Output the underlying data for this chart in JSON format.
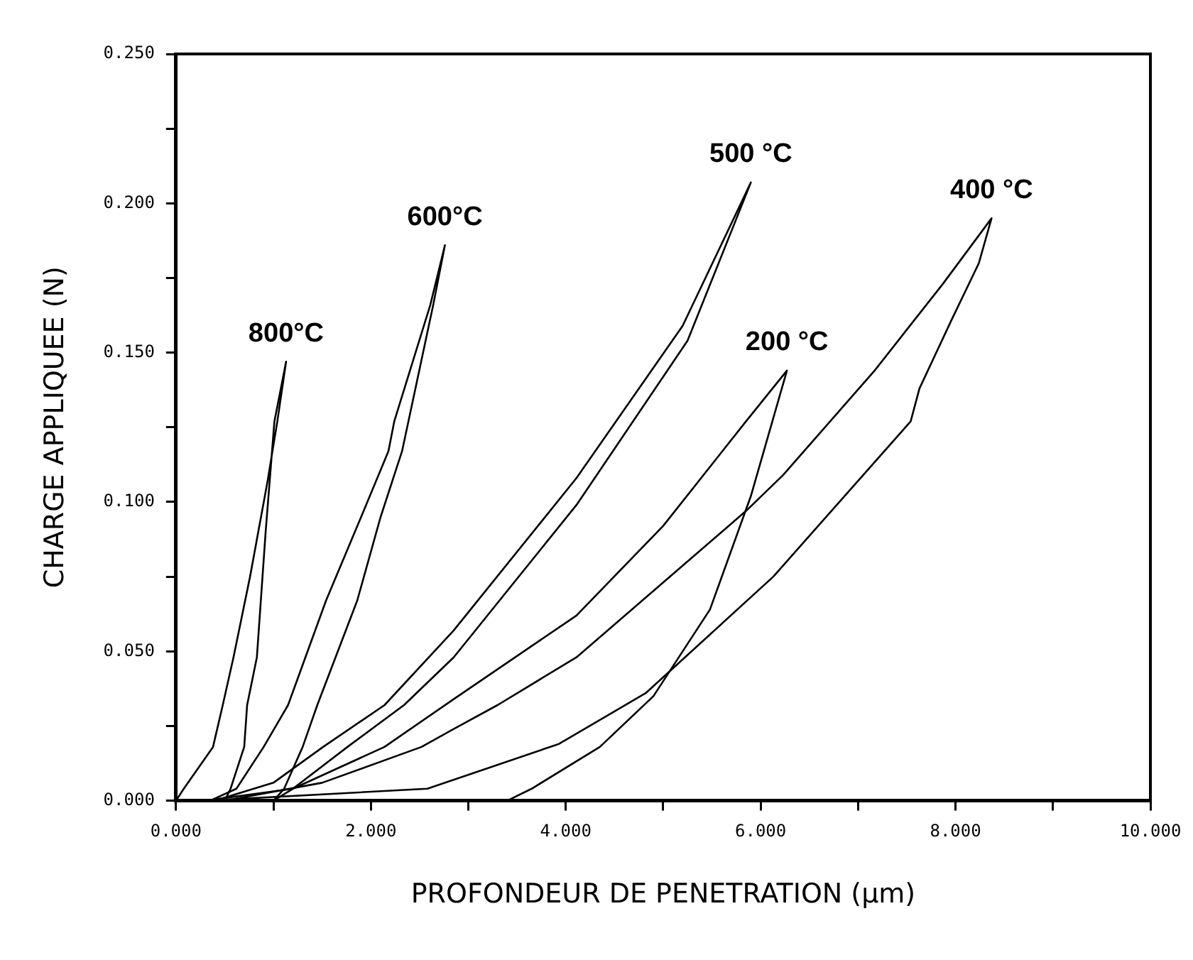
{
  "chart_data": {
    "type": "line",
    "xlabel": "PROFONDEUR DE PENETRATION (µm)",
    "ylabel": "CHARGE APPLIQUEE (N)",
    "xlim": [
      0,
      10
    ],
    "ylim": [
      0,
      0.25
    ],
    "xticks": [
      {
        "value": 0,
        "label": "0.000"
      },
      {
        "value": 1,
        "label": null
      },
      {
        "value": 2,
        "label": "2.000"
      },
      {
        "value": 3,
        "label": null
      },
      {
        "value": 4,
        "label": "4.000"
      },
      {
        "value": 5,
        "label": null
      },
      {
        "value": 6,
        "label": "6.000"
      },
      {
        "value": 7,
        "label": null
      },
      {
        "value": 8,
        "label": "8.000"
      },
      {
        "value": 9,
        "label": null
      },
      {
        "value": 10,
        "label": "10.000"
      }
    ],
    "yticks": [
      {
        "value": 0,
        "label": "0.000"
      },
      {
        "value": 0.025,
        "label": null
      },
      {
        "value": 0.05,
        "label": "0.050"
      },
      {
        "value": 0.075,
        "label": null
      },
      {
        "value": 0.1,
        "label": "0.100"
      },
      {
        "value": 0.125,
        "label": null
      },
      {
        "value": 0.15,
        "label": "0.150"
      },
      {
        "value": 0.175,
        "label": null
      },
      {
        "value": 0.2,
        "label": "0.200"
      },
      {
        "value": 0.225,
        "label": null
      },
      {
        "value": 0.25,
        "label": "0.250"
      }
    ],
    "grid": false,
    "legend": false,
    "marker": "none",
    "line_style": "solid",
    "series": [
      {
        "name": "800°C",
        "color": "#000000",
        "x": [
          0,
          0.08,
          0.38,
          0.48,
          0.59,
          0.76,
          0.94,
          1.04,
          1.13,
          1.01,
          0.92,
          0.83,
          0.73,
          0.7,
          0.56,
          0.5
        ],
        "values": [
          0,
          0.004,
          0.018,
          0.032,
          0.048,
          0.075,
          0.107,
          0.127,
          0.147,
          0.127,
          0.09,
          0.048,
          0.032,
          0.018,
          0.004,
          0
        ]
      },
      {
        "name": "600°C",
        "color": "#000000",
        "x": [
          0.35,
          0.62,
          0.9,
          1.15,
          1.54,
          1.9,
          2.18,
          2.24,
          2.61,
          2.76,
          2.64,
          2.32,
          2.1,
          1.86,
          1.45,
          1.3,
          1.11,
          1.0
        ],
        "values": [
          0,
          0.004,
          0.018,
          0.032,
          0.067,
          0.095,
          0.117,
          0.127,
          0.166,
          0.186,
          0.166,
          0.117,
          0.095,
          0.067,
          0.032,
          0.018,
          0.004,
          0
        ]
      },
      {
        "name": "500 °C",
        "color": "#000000",
        "x": [
          0.4,
          1.0,
          1.51,
          2.14,
          2.85,
          4.11,
          5.2,
          5.9,
          5.25,
          4.11,
          2.85,
          2.34,
          1.76,
          1.2,
          1.0
        ],
        "values": [
          0,
          0.006,
          0.018,
          0.032,
          0.057,
          0.108,
          0.159,
          0.207,
          0.154,
          0.099,
          0.048,
          0.032,
          0.018,
          0.004,
          0
        ]
      },
      {
        "name": "200 °C",
        "color": "#000000",
        "x": [
          0.3,
          1.2,
          2.14,
          2.85,
          4.11,
          5.0,
          5.85,
          6.27,
          5.9,
          5.48,
          4.9,
          4.35,
          3.65,
          3.4
        ],
        "values": [
          0,
          0.004,
          0.018,
          0.034,
          0.062,
          0.092,
          0.127,
          0.144,
          0.102,
          0.064,
          0.035,
          0.018,
          0.004,
          0
        ]
      },
      {
        "name": "400 °C",
        "color": "#000000",
        "x": [
          0.5,
          1.5,
          2.52,
          2.85,
          3.3,
          4.11,
          5.85,
          6.23,
          7.17,
          7.87,
          8.37,
          8.24,
          7.96,
          7.63,
          7.54,
          6.13,
          4.82,
          3.93,
          2.58,
          0.3
        ],
        "values": [
          0,
          0.006,
          0.018,
          0.024,
          0.032,
          0.048,
          0.097,
          0.109,
          0.144,
          0.173,
          0.195,
          0.18,
          0.161,
          0.138,
          0.127,
          0.075,
          0.036,
          0.019,
          0.004,
          0
        ]
      }
    ]
  }
}
